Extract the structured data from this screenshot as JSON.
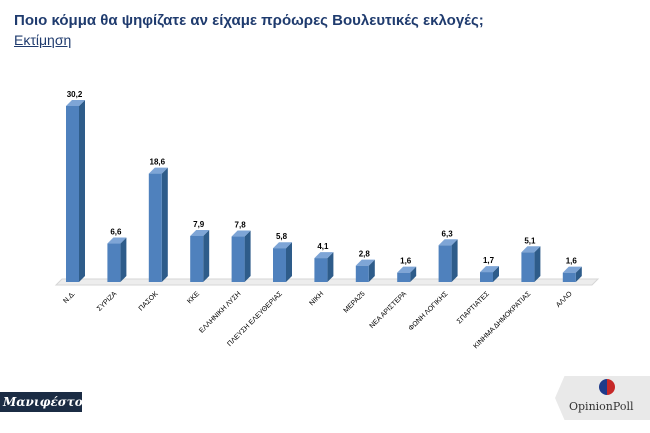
{
  "header": {
    "title": "Ποιο κόμμα θα ψηφίζατε αν είχαμε πρόωρες Βουλευτικές εκλογές;",
    "subtitle": "Εκτίμηση"
  },
  "chart_data": {
    "type": "bar",
    "title": "Ποιο κόμμα θα ψηφίζατε αν είχαμε πρόωρες Βουλευτικές εκλογές;",
    "subtitle": "Εκτίμηση",
    "categories": [
      "Ν.Δ.",
      "ΣΥΡΙΖΑ",
      "ΠΑΣΟΚ",
      "ΚΚΕ",
      "ΕΛΛΗΝΙΚΗ ΛΥΣΗ",
      "ΠΛΕΥΣΗ ΕΛΕΥΘΕΡΙΑΣ",
      "ΝΙΚΗ",
      "ΜΕΡΑ25",
      "ΝΕΑ ΑΡΙΣΤΕΡΑ",
      "ΦΩΝΗ ΛΟΓΙΚΗΣ",
      "ΣΠΑΡΤΙΑΤΕΣ",
      "ΚΙΝΗΜΑ ΔΗΜΟΚΡΑΤΙΑΣ",
      "ΑΛΛΟ"
    ],
    "values": [
      30.2,
      6.6,
      18.6,
      7.9,
      7.8,
      5.8,
      4.1,
      2.8,
      1.6,
      6.3,
      1.7,
      5.1,
      1.6
    ],
    "value_labels": [
      "30,2",
      "6,6",
      "18,6",
      "7,9",
      "7,8",
      "5,8",
      "4,1",
      "2,8",
      "1,6",
      "6,3",
      "1,7",
      "5,1",
      "1,6"
    ],
    "ylim": [
      0,
      32
    ],
    "grid": false,
    "legend": "none",
    "colors": {
      "bar_front": "#4f81bd",
      "bar_side": "#2e5c8a",
      "bar_top": "#7ea5d6",
      "floor": "#ededed",
      "title": "#1f3b6e"
    }
  },
  "logos": {
    "left_text": "Μανιφέστο",
    "right_text": "OpinionPoll"
  }
}
